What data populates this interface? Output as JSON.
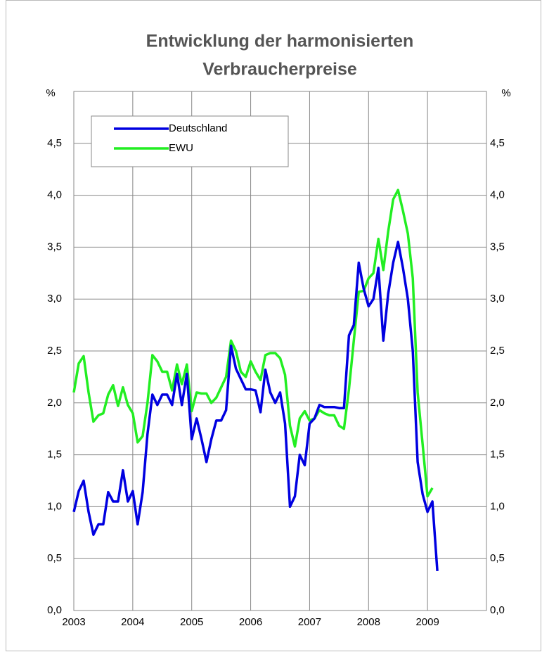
{
  "chart_data": {
    "type": "line",
    "title": [
      "Entwicklung der harmonisierten",
      "Verbraucherpreise"
    ],
    "y_label": "%",
    "y2_label": "%",
    "xlim": [
      2003,
      2010
    ],
    "xticks": [
      2003,
      2004,
      2005,
      2006,
      2007,
      2008,
      2009
    ],
    "ylim": [
      0,
      5
    ],
    "yticks": [
      {
        "value": 0,
        "label": "0,0"
      },
      {
        "value": 0.5,
        "label": "0,5"
      },
      {
        "value": 1,
        "label": "1,0"
      },
      {
        "value": 1.5,
        "label": "1,5"
      },
      {
        "value": 2,
        "label": "2,0"
      },
      {
        "value": 2.5,
        "label": "2,5"
      },
      {
        "value": 3,
        "label": "3,0"
      },
      {
        "value": 3.5,
        "label": "3,5"
      },
      {
        "value": 4,
        "label": "4,0"
      },
      {
        "value": 4.5,
        "label": "4,5"
      }
    ],
    "y2lim": [
      0,
      5
    ],
    "y2ticks": [
      {
        "value": 0,
        "label": "0,0"
      },
      {
        "value": 0.5,
        "label": "0,5"
      },
      {
        "value": 1,
        "label": "1,0"
      },
      {
        "value": 1.5,
        "label": "1,5"
      },
      {
        "value": 2,
        "label": "2,0"
      },
      {
        "value": 2.5,
        "label": "2,5"
      },
      {
        "value": 3,
        "label": "3,0"
      },
      {
        "value": 3.5,
        "label": "3,5"
      },
      {
        "value": 4,
        "label": "4,0"
      },
      {
        "value": 4.5,
        "label": "4,5"
      }
    ],
    "grid": true,
    "legend": "upper left",
    "series": [
      {
        "name": "Deutschland",
        "color": "#0000e0",
        "x": [
          2003,
          2003.083,
          2003.167,
          2003.25,
          2003.333,
          2003.417,
          2003.5,
          2003.583,
          2003.667,
          2003.75,
          2003.833,
          2003.917,
          2004,
          2004.083,
          2004.167,
          2004.25,
          2004.333,
          2004.417,
          2004.5,
          2004.583,
          2004.667,
          2004.75,
          2004.833,
          2004.917,
          2005,
          2005.083,
          2005.167,
          2005.25,
          2005.333,
          2005.417,
          2005.5,
          2005.583,
          2005.667,
          2005.75,
          2005.833,
          2005.917,
          2006,
          2006.083,
          2006.167,
          2006.25,
          2006.333,
          2006.417,
          2006.5,
          2006.583,
          2006.667,
          2006.75,
          2006.833,
          2006.917,
          2007,
          2007.083,
          2007.167,
          2007.25,
          2007.333,
          2007.417,
          2007.5,
          2007.583,
          2007.667,
          2007.75,
          2007.833,
          2007.917,
          2008,
          2008.083,
          2008.167,
          2008.25,
          2008.333,
          2008.417,
          2008.5,
          2008.583,
          2008.667,
          2008.75,
          2008.833,
          2008.917,
          2009,
          2009.083,
          2009.167
        ],
        "values": [
          0.95,
          1.15,
          1.25,
          0.95,
          0.73,
          0.83,
          0.83,
          1.14,
          1.05,
          1.05,
          1.35,
          1.05,
          1.15,
          0.83,
          1.14,
          1.7,
          2.08,
          1.98,
          2.08,
          2.08,
          1.98,
          2.28,
          1.98,
          2.28,
          1.65,
          1.85,
          1.65,
          1.43,
          1.65,
          1.83,
          1.83,
          1.93,
          2.55,
          2.33,
          2.23,
          2.13,
          2.13,
          2.12,
          1.91,
          2.32,
          2.1,
          2.0,
          2.1,
          1.8,
          1.0,
          1.1,
          1.5,
          1.4,
          1.8,
          1.85,
          1.98,
          1.96,
          1.96,
          1.96,
          1.95,
          1.95,
          2.65,
          2.75,
          3.35,
          3.1,
          2.93,
          3.0,
          3.3,
          2.6,
          3.05,
          3.35,
          3.55,
          3.3,
          3.0,
          2.5,
          1.43,
          1.12,
          0.95,
          1.05,
          0.38
        ]
      },
      {
        "name": "EWU",
        "color": "#22ee22",
        "x": [
          2003,
          2003.083,
          2003.167,
          2003.25,
          2003.333,
          2003.417,
          2003.5,
          2003.583,
          2003.667,
          2003.75,
          2003.833,
          2003.917,
          2004,
          2004.083,
          2004.167,
          2004.25,
          2004.333,
          2004.417,
          2004.5,
          2004.583,
          2004.667,
          2004.75,
          2004.833,
          2004.917,
          2005,
          2005.083,
          2005.167,
          2005.25,
          2005.333,
          2005.417,
          2005.5,
          2005.583,
          2005.667,
          2005.75,
          2005.833,
          2005.917,
          2006,
          2006.083,
          2006.167,
          2006.25,
          2006.333,
          2006.417,
          2006.5,
          2006.583,
          2006.667,
          2006.75,
          2006.833,
          2006.917,
          2007,
          2007.083,
          2007.167,
          2007.25,
          2007.333,
          2007.417,
          2007.5,
          2007.583,
          2007.667,
          2007.75,
          2007.833,
          2007.917,
          2008,
          2008.083,
          2008.167,
          2008.25,
          2008.333,
          2008.417,
          2008.5,
          2008.583,
          2008.667,
          2008.75,
          2008.833,
          2008.917,
          2009,
          2009.083
        ],
        "values": [
          2.1,
          2.38,
          2.45,
          2.1,
          1.82,
          1.88,
          1.9,
          2.08,
          2.17,
          1.97,
          2.15,
          1.98,
          1.9,
          1.62,
          1.68,
          2.0,
          2.46,
          2.4,
          2.3,
          2.3,
          2.12,
          2.37,
          2.18,
          2.37,
          1.92,
          2.1,
          2.09,
          2.09,
          2.0,
          2.05,
          2.15,
          2.25,
          2.6,
          2.5,
          2.3,
          2.25,
          2.4,
          2.3,
          2.22,
          2.46,
          2.48,
          2.48,
          2.43,
          2.27,
          1.78,
          1.58,
          1.85,
          1.92,
          1.83,
          1.85,
          1.93,
          1.9,
          1.88,
          1.88,
          1.78,
          1.75,
          2.13,
          2.6,
          3.07,
          3.08,
          3.2,
          3.25,
          3.58,
          3.28,
          3.65,
          3.96,
          4.05,
          3.85,
          3.63,
          3.2,
          2.1,
          1.6,
          1.1,
          1.18
        ]
      }
    ]
  }
}
